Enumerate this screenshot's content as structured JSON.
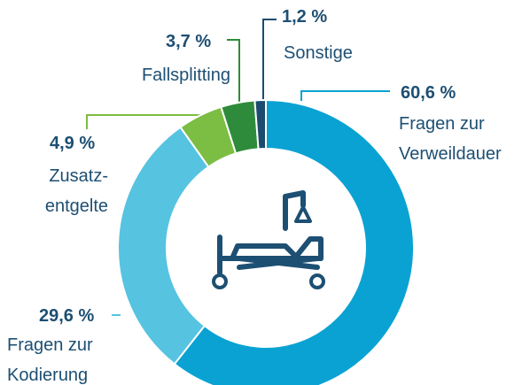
{
  "chart_data": {
    "type": "pie",
    "categories": [
      "Fragen zur Verweildauer",
      "Fragen zur Kodierung",
      "Zusatz-entgelte",
      "Fallsplitting",
      "Sonstige"
    ],
    "values": [
      60.6,
      29.6,
      4.9,
      3.7,
      1.2
    ],
    "value_labels": [
      "60,6 %",
      "29,6 %",
      "4,9 %",
      "3,7 %",
      "1,2 %"
    ],
    "colors": [
      "#0aa2d2",
      "#56c3e1",
      "#7cbd43",
      "#2e8b3b",
      "#1b4b6f"
    ]
  }
}
